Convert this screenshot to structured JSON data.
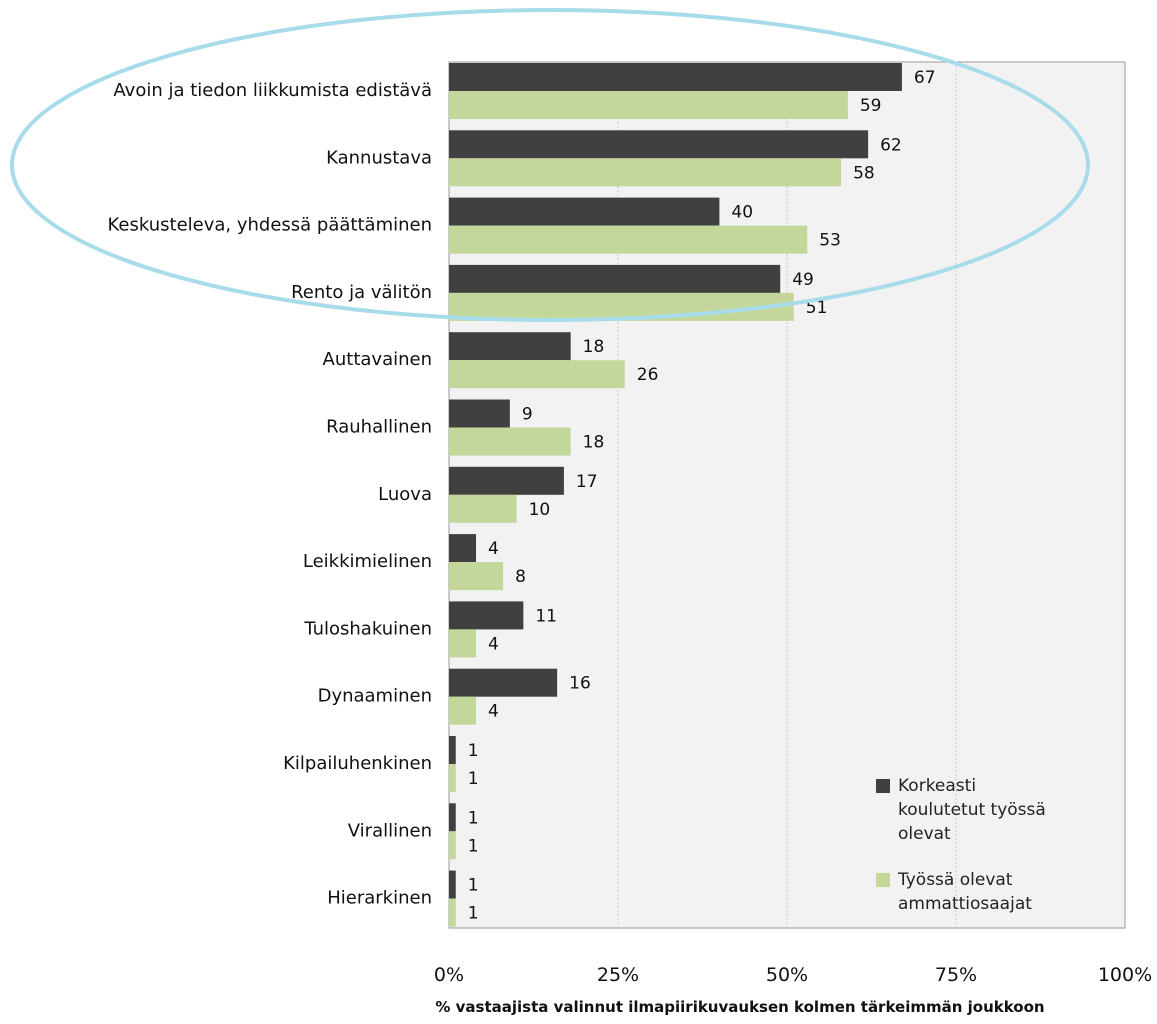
{
  "chart_data": {
    "type": "bar",
    "orientation": "horizontal",
    "categories": [
      "Avoin ja tiedon liikkumista edistävä",
      "Kannustava",
      "Keskusteleva, yhdessä päättäminen",
      "Rento ja välitön",
      "Auttavainen",
      "Rauhallinen",
      "Luova",
      "Leikkimielinen",
      "Tuloshakuinen",
      "Dynaaminen",
      "Kilpailuhenkinen",
      "Virallinen",
      "Hierarkinen"
    ],
    "series": [
      {
        "name": "Korkeasti koulutetut työssä olevat",
        "color": "#404040",
        "values": [
          67,
          62,
          40,
          49,
          18,
          9,
          17,
          4,
          11,
          16,
          1,
          1,
          1
        ]
      },
      {
        "name": "Työssä olevat ammattiosaajat",
        "color": "#c4d79b",
        "values": [
          59,
          58,
          53,
          51,
          26,
          18,
          10,
          8,
          4,
          4,
          1,
          1,
          1
        ]
      }
    ],
    "xlim": [
      0,
      100
    ],
    "xticks": [
      "0%",
      "25%",
      "50%",
      "75%",
      "100%"
    ],
    "xlabel": "% vastaajista valinnut  ilmapiirikuvauksen kolmen tärkeimmän joukkoon",
    "ylabel": "",
    "title": "",
    "grid": true,
    "legend_position": "bottom-right",
    "plot_background": "#f2f2f2",
    "highlight": {
      "shape": "ellipse",
      "color": "#a8dcea",
      "covers_categories": [
        "Avoin ja tiedon liikkumista edistävä",
        "Kannustava",
        "Keskusteleva, yhdessä päättäminen",
        "Rento ja välitön"
      ]
    }
  }
}
